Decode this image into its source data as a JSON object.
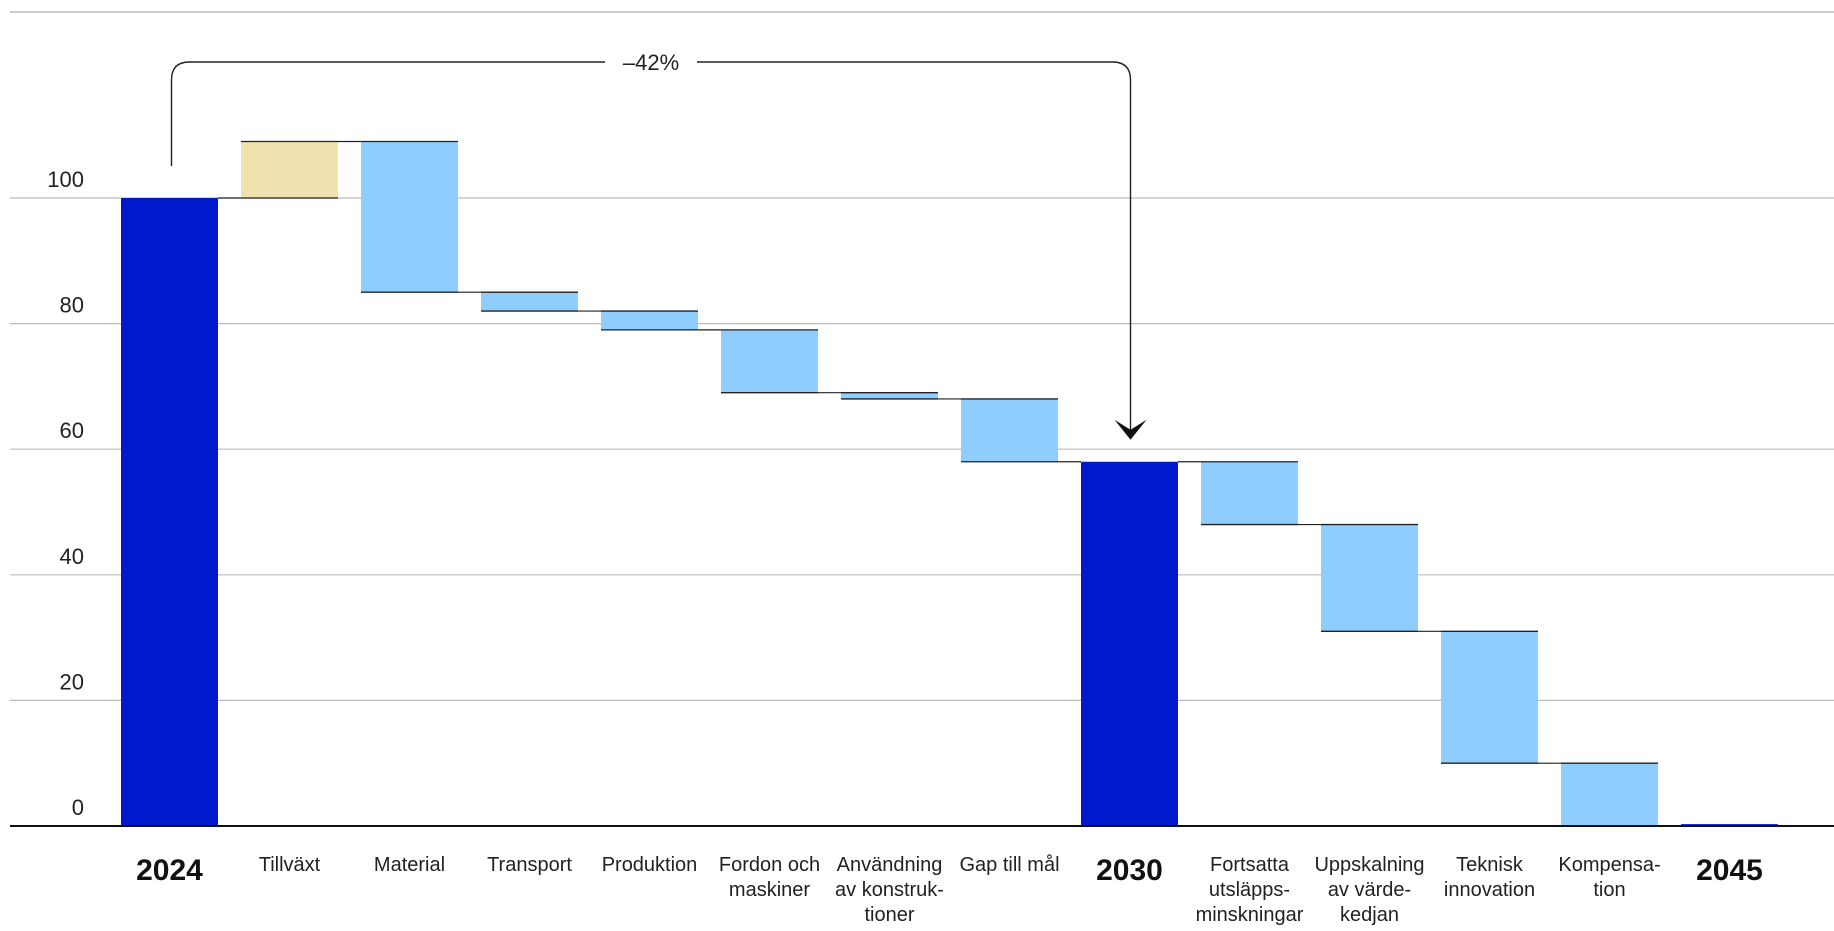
{
  "chart_data": {
    "type": "bar",
    "subtype": "waterfall",
    "title": "",
    "xlabel": "",
    "ylabel": "",
    "ylim": [
      0,
      100
    ],
    "yticks": [
      0,
      20,
      40,
      60,
      80,
      100
    ],
    "grid": true,
    "colors": {
      "total": "#0019CC",
      "increase": "#F0E2AE",
      "decrease": "#90CDFF",
      "gridline": "#BBBBBB",
      "axis": "#111111",
      "bar_edge": "#222222"
    },
    "categories": [
      {
        "label_lines": [
          "2024"
        ],
        "kind": "total",
        "start": 0,
        "end": 100
      },
      {
        "label_lines": [
          "Tillväxt"
        ],
        "kind": "increase",
        "start": 100,
        "end": 109
      },
      {
        "label_lines": [
          "Material"
        ],
        "kind": "decrease",
        "start": 109,
        "end": 85
      },
      {
        "label_lines": [
          "Transport"
        ],
        "kind": "decrease",
        "start": 85,
        "end": 82
      },
      {
        "label_lines": [
          "Produktion"
        ],
        "kind": "decrease",
        "start": 82,
        "end": 79
      },
      {
        "label_lines": [
          "Fordon och",
          "maskiner"
        ],
        "kind": "decrease",
        "start": 79,
        "end": 69
      },
      {
        "label_lines": [
          "Användning",
          "av konstruk-",
          "tioner"
        ],
        "kind": "decrease",
        "start": 69,
        "end": 68
      },
      {
        "label_lines": [
          "Gap till mål"
        ],
        "kind": "decrease",
        "start": 68,
        "end": 58
      },
      {
        "label_lines": [
          "2030"
        ],
        "kind": "total",
        "start": 0,
        "end": 58
      },
      {
        "label_lines": [
          "Fortsatta",
          "utsläpps-",
          "minskningar"
        ],
        "kind": "decrease",
        "start": 58,
        "end": 48
      },
      {
        "label_lines": [
          "Uppskalning",
          "av värde-",
          "kedjan"
        ],
        "kind": "decrease",
        "start": 48,
        "end": 31
      },
      {
        "label_lines": [
          "Teknisk",
          "innovation"
        ],
        "kind": "decrease",
        "start": 31,
        "end": 10
      },
      {
        "label_lines": [
          "Kompensa-",
          "tion"
        ],
        "kind": "decrease",
        "start": 10,
        "end": 0
      },
      {
        "label_lines": [
          "2045"
        ],
        "kind": "total",
        "start": 0,
        "end": 0.3
      }
    ],
    "annotation": {
      "text": "–42%",
      "from_category": "2024",
      "to_category": "2030"
    }
  }
}
